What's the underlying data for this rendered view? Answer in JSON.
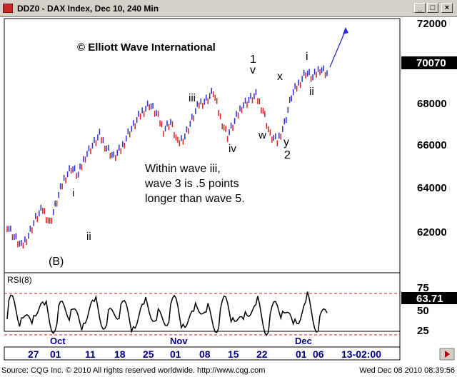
{
  "window": {
    "title": "DDZ0 - DAX Index, Dec 10, 240 Min",
    "icon": "app-icon",
    "min_glyph": "_",
    "max_glyph": "□",
    "close_glyph": "×"
  },
  "chart": {
    "copyright": "© Elliott Wave International",
    "last_price": "70070",
    "y_ticks": [
      "72000",
      "70000",
      "68000",
      "66000",
      "64000",
      "62000"
    ],
    "annotation_lines": [
      "Within wave iii,",
      "wave 3 is .5 points",
      "longer than wave 5."
    ],
    "wave_labels": [
      "(B)",
      "i",
      "ii",
      "iii",
      "iv",
      "1",
      "v",
      "w",
      "x",
      "y",
      "2",
      "i",
      "ii"
    ],
    "colors": {
      "up": "#2b2bd6",
      "down": "#d62020",
      "accent_box": "#000000"
    }
  },
  "rsi": {
    "title": "RSI(8)",
    "value": "63.71",
    "levels": [
      "75",
      "50",
      "25"
    ]
  },
  "time_axis": {
    "months": [
      "Oct",
      "Nov",
      "Dec"
    ],
    "days": [
      "27",
      "01",
      "11",
      "18",
      "25",
      "01",
      "08",
      "15",
      "22",
      "01",
      "06",
      "13-02:00"
    ]
  },
  "footer": {
    "left": "Source: CQG Inc. © 2010 All rights reserved worldwide. http://www.cqg.com",
    "right": "Wed Dec 08 2010 08:39:56"
  },
  "chart_data": {
    "type": "scatter",
    "title": "DDZ0 - DAX Index, Dec 10, 240 Min",
    "series": [
      {
        "name": "price",
        "x": [
          0,
          5,
          10,
          15,
          20,
          25,
          30,
          35,
          40,
          45,
          50,
          55,
          60,
          65,
          70,
          75,
          80,
          85,
          90,
          95,
          100,
          105,
          110,
          115,
          120,
          125,
          130,
          135,
          140,
          145,
          150,
          155,
          160,
          165,
          170,
          175,
          180,
          185,
          190,
          195,
          200,
          205,
          210,
          215,
          220,
          225
        ],
        "y": [
          62400,
          61800,
          61300,
          61900,
          62700,
          63200,
          62500,
          63600,
          64700,
          65300,
          64900,
          65900,
          66400,
          66900,
          66300,
          65800,
          66200,
          67000,
          67500,
          68100,
          68500,
          68000,
          67200,
          67600,
          66500,
          66900,
          67700,
          68500,
          68700,
          69100,
          67800,
          66900,
          67600,
          68400,
          68700,
          68900,
          68200,
          66900,
          66600,
          67500,
          68900,
          69500,
          70100,
          69800,
          70300,
          70050
        ]
      }
    ],
    "ylim": [
      60000,
      72800
    ],
    "rsi_levels": [
      25,
      50,
      75
    ],
    "rsi_last": 63.71
  }
}
